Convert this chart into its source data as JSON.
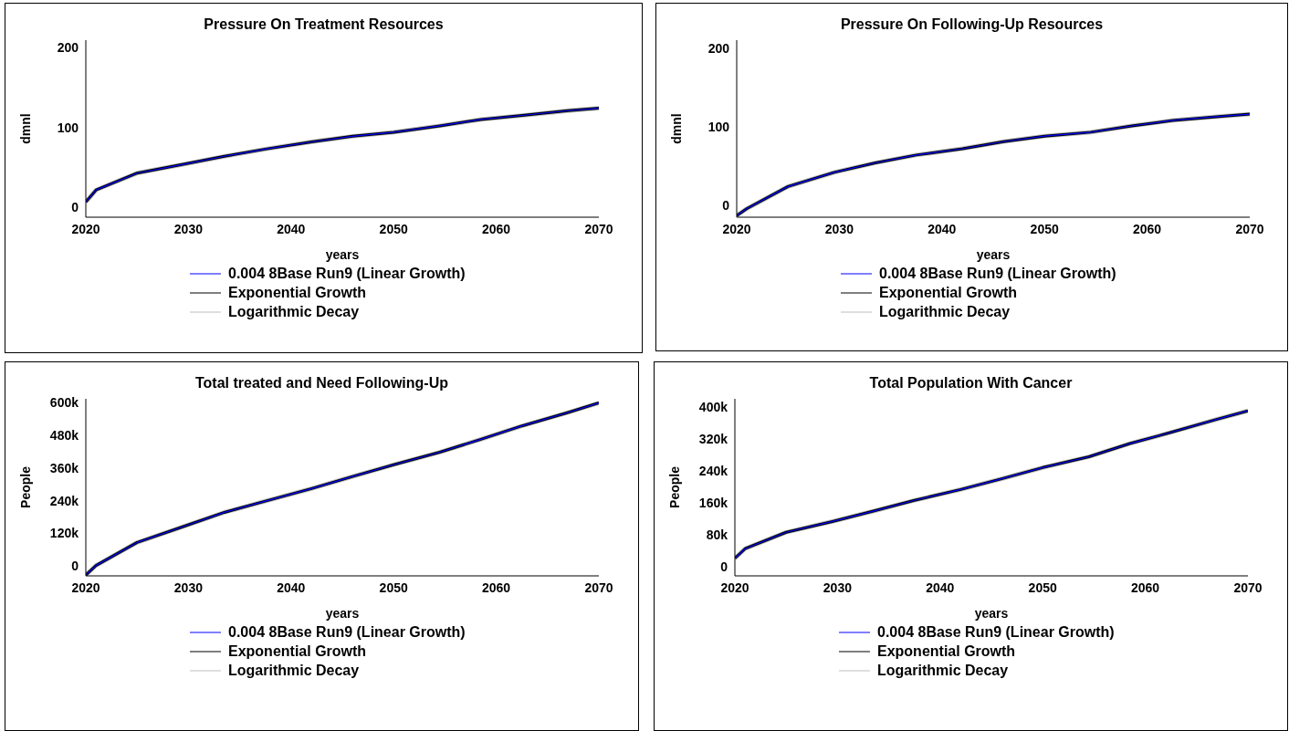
{
  "chart_data": [
    {
      "type": "line",
      "title": "Pressure On Treatment Resources",
      "xlabel": "years",
      "ylabel": "dmnl",
      "legend": "bottom",
      "xlim": [
        2020,
        2070
      ],
      "xticks": [
        2020,
        2030,
        2040,
        2050,
        2060,
        2070
      ],
      "ylim": [
        -12,
        209
      ],
      "yticks": [
        0,
        100,
        200
      ],
      "x": [
        2020,
        2021,
        2025,
        2029.5,
        2033.5,
        2037.5,
        2042,
        2046,
        2050,
        2054.5,
        2058.5,
        2062.5,
        2067,
        2070
      ],
      "series": [
        {
          "name": "0.004 8Base Run9 (Linear Growth)",
          "color": "#0000ff",
          "values": [
            7,
            22,
            43,
            54,
            64,
            73,
            82,
            89,
            94,
            102,
            110,
            115,
            121,
            124
          ]
        },
        {
          "name": "Exponential Growth",
          "color": "#000000",
          "values": [
            7,
            22,
            43,
            54,
            64,
            73,
            82,
            89,
            94,
            102,
            110,
            115,
            121,
            124
          ]
        },
        {
          "name": "Logarithmic Decay",
          "color": "#c0c0c0",
          "values": [
            7,
            22,
            43,
            54,
            64,
            73,
            82,
            89,
            94,
            102,
            110,
            115,
            121,
            124
          ]
        }
      ]
    },
    {
      "type": "line",
      "title": "Pressure On Following-Up Resources",
      "xlabel": "years",
      "ylabel": "dmnl",
      "legend": "bottom",
      "xlim": [
        2020,
        2070
      ],
      "xticks": [
        2020,
        2030,
        2040,
        2050,
        2060,
        2070
      ],
      "ylim": [
        -15,
        210
      ],
      "yticks": [
        0,
        100,
        200
      ],
      "x": [
        2020,
        2021,
        2025,
        2029.5,
        2033.5,
        2037.5,
        2042,
        2046,
        2050,
        2054.5,
        2058.5,
        2062.5,
        2067,
        2070
      ],
      "series": [
        {
          "name": "0.004 8Base Run9 (Linear Growth)",
          "color": "#0000ff",
          "values": [
            -13,
            -4,
            24,
            42,
            54,
            64,
            72,
            81,
            88,
            93,
            101,
            108,
            113,
            116
          ]
        },
        {
          "name": "Exponential Growth",
          "color": "#000000",
          "values": [
            -13,
            -4,
            24,
            42,
            54,
            64,
            72,
            81,
            88,
            93,
            101,
            108,
            113,
            116
          ]
        },
        {
          "name": "Logarithmic Decay",
          "color": "#c0c0c0",
          "values": [
            -13,
            -4,
            24,
            42,
            54,
            64,
            72,
            81,
            88,
            93,
            101,
            108,
            113,
            116
          ]
        }
      ]
    },
    {
      "type": "line",
      "title": "Total treated and Need Following-Up",
      "xlabel": "years",
      "ylabel": "People",
      "legend": "bottom",
      "xlim": [
        2020,
        2070
      ],
      "xticks": [
        2020,
        2030,
        2040,
        2050,
        2060,
        2070
      ],
      "ylim": [
        -35000,
        612000
      ],
      "yticks": [
        0,
        {
          "value": 120000,
          "label": "120k"
        },
        {
          "value": 240000,
          "label": "240k"
        },
        {
          "value": 360000,
          "label": "360k"
        },
        {
          "value": 480000,
          "label": "480k"
        },
        {
          "value": 600000,
          "label": "600k"
        }
      ],
      "x": [
        2020,
        2021,
        2025,
        2029.5,
        2033.5,
        2037.5,
        2042,
        2046,
        2050,
        2054.5,
        2058.5,
        2062.5,
        2067,
        2070
      ],
      "series": [
        {
          "name": "0.004 8Base Run9 (Linear Growth)",
          "color": "#0000ff",
          "values": [
            -32000,
            3000,
            87000,
            145000,
            197000,
            238000,
            284000,
            328000,
            371000,
            417000,
            464000,
            513000,
            562000,
            597000
          ]
        },
        {
          "name": "Exponential Growth",
          "color": "#000000",
          "values": [
            -32000,
            3000,
            87000,
            145000,
            197000,
            238000,
            284000,
            328000,
            371000,
            417000,
            464000,
            513000,
            562000,
            597000
          ]
        },
        {
          "name": "Logarithmic Decay",
          "color": "#c0c0c0",
          "values": [
            -32000,
            3000,
            87000,
            145000,
            197000,
            238000,
            284000,
            328000,
            371000,
            417000,
            464000,
            513000,
            562000,
            597000
          ]
        }
      ]
    },
    {
      "type": "line",
      "title": "Total Population With Cancer",
      "xlabel": "years",
      "ylabel": "People",
      "legend": "bottom",
      "xlim": [
        2020,
        2070
      ],
      "xticks": [
        2020,
        2030,
        2040,
        2050,
        2060,
        2070
      ],
      "ylim": [
        -23000,
        420000
      ],
      "yticks": [
        0,
        {
          "value": 80000,
          "label": "80k"
        },
        {
          "value": 160000,
          "label": "160k"
        },
        {
          "value": 240000,
          "label": "240k"
        },
        {
          "value": 320000,
          "label": "320k"
        },
        {
          "value": 400000,
          "label": "400k"
        }
      ],
      "x": [
        2020,
        2021,
        2025,
        2029.5,
        2033.5,
        2037.5,
        2042,
        2046,
        2050,
        2054.5,
        2058.5,
        2062.5,
        2067,
        2070
      ],
      "series": [
        {
          "name": "0.004 8Base Run9 (Linear Growth)",
          "color": "#0000ff",
          "values": [
            21000,
            45000,
            86000,
            113000,
            139000,
            166000,
            193000,
            220000,
            248000,
            275000,
            308000,
            336000,
            369000,
            390000
          ]
        },
        {
          "name": "Exponential Growth",
          "color": "#000000",
          "values": [
            21000,
            45000,
            86000,
            113000,
            139000,
            166000,
            193000,
            220000,
            248000,
            275000,
            308000,
            336000,
            369000,
            390000
          ]
        },
        {
          "name": "Logarithmic Decay",
          "color": "#c0c0c0",
          "values": [
            21000,
            45000,
            86000,
            113000,
            139000,
            166000,
            193000,
            220000,
            248000,
            275000,
            308000,
            336000,
            369000,
            390000
          ]
        }
      ]
    }
  ]
}
